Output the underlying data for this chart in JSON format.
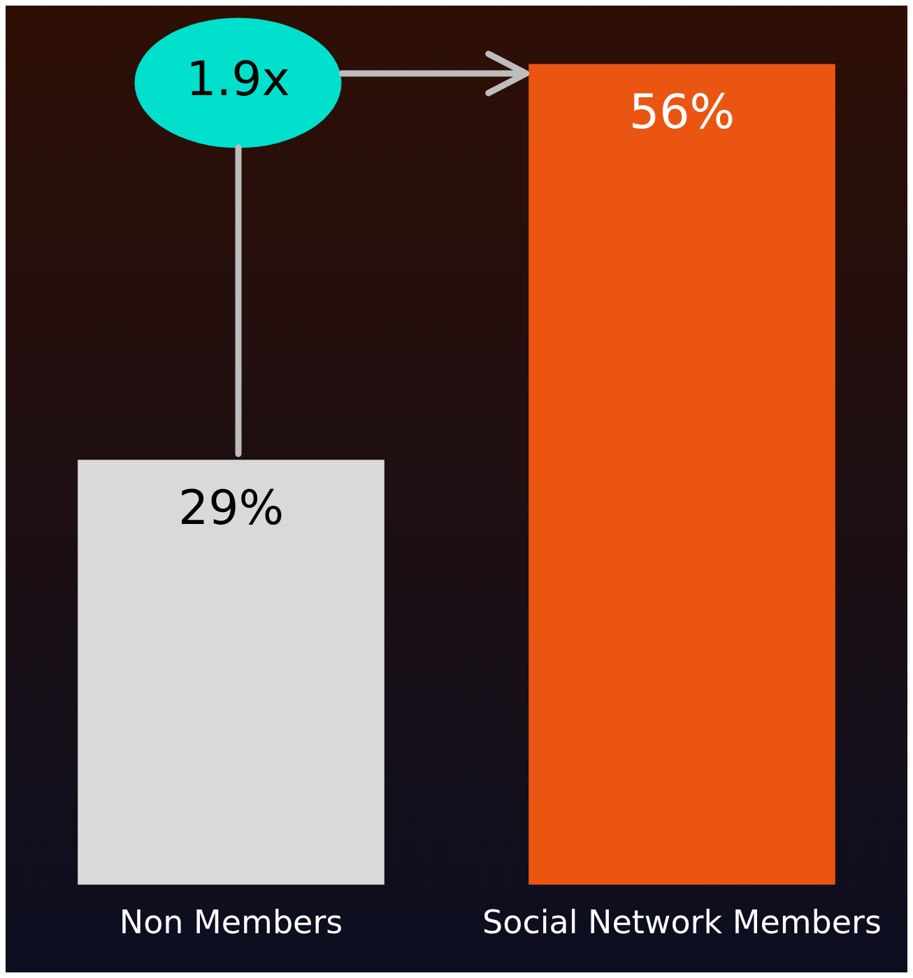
{
  "chart_data": {
    "type": "bar",
    "categories": [
      "Non Members",
      "Social Network Members"
    ],
    "values": [
      29,
      56
    ],
    "value_labels": [
      "29%",
      "56%"
    ],
    "colors": [
      "#d9d9d9",
      "#ea5512"
    ],
    "annotations": [
      "1.9x"
    ]
  }
}
